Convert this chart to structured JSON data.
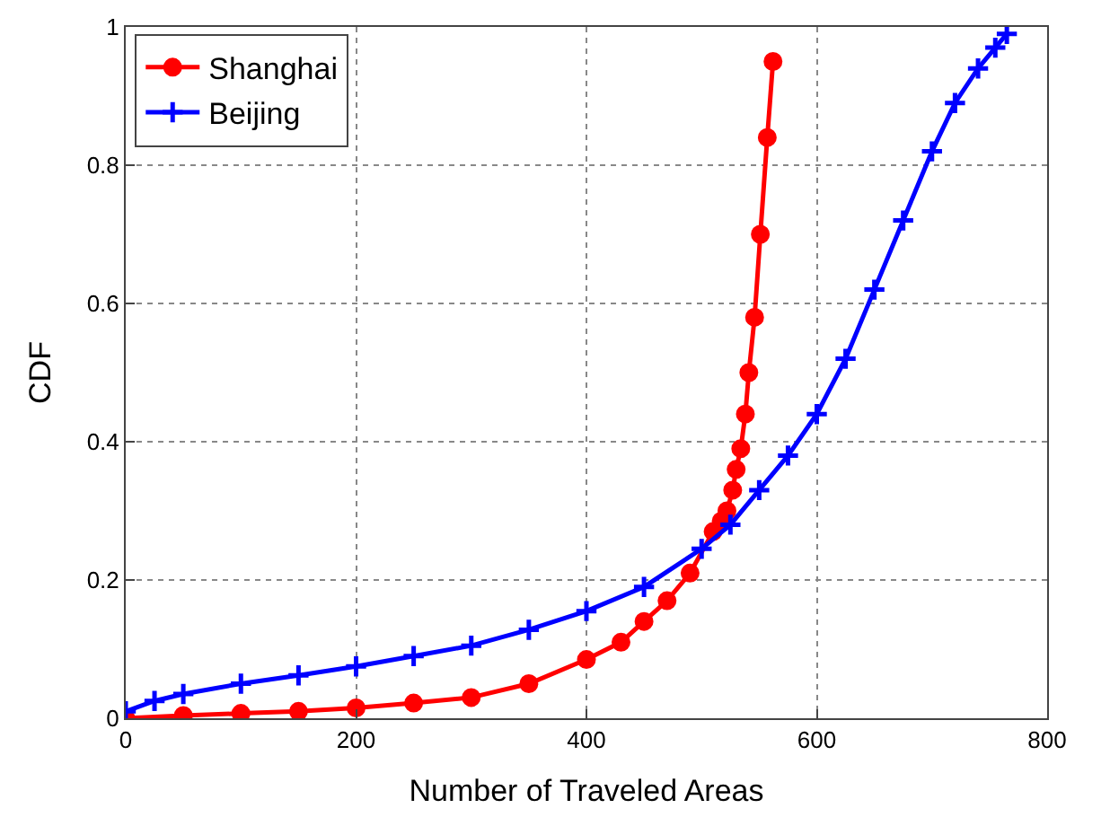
{
  "chart_data": {
    "type": "line",
    "xlabel": "Number of Traveled Areas",
    "ylabel": "CDF",
    "xlim": [
      0,
      800
    ],
    "ylim": [
      0,
      1
    ],
    "xticks": [
      0,
      200,
      400,
      600,
      800
    ],
    "yticks": [
      0,
      0.2,
      0.4,
      0.6,
      0.8,
      1
    ],
    "grid": true,
    "legend": "top left",
    "line_style": "solid",
    "series": [
      {
        "name": "Shanghai",
        "color": "#ff0000",
        "marker": "circle",
        "x": [
          0,
          50,
          100,
          150,
          200,
          250,
          300,
          350,
          400,
          430,
          450,
          470,
          490,
          510,
          517,
          522,
          527,
          530,
          534,
          538,
          541,
          546,
          551,
          557,
          562
        ],
        "values": [
          0,
          0.004,
          0.007,
          0.01,
          0.015,
          0.022,
          0.03,
          0.05,
          0.085,
          0.11,
          0.14,
          0.17,
          0.21,
          0.27,
          0.285,
          0.3,
          0.33,
          0.36,
          0.39,
          0.44,
          0.5,
          0.58,
          0.7,
          0.84,
          0.95
        ]
      },
      {
        "name": "Beijing",
        "color": "#0000ff",
        "marker": "cross",
        "x": [
          0,
          25,
          50,
          100,
          150,
          200,
          250,
          300,
          350,
          400,
          450,
          500,
          525,
          550,
          575,
          600,
          625,
          650,
          675,
          700,
          720,
          740,
          755,
          765
        ],
        "values": [
          0.01,
          0.025,
          0.035,
          0.05,
          0.062,
          0.075,
          0.09,
          0.105,
          0.128,
          0.155,
          0.19,
          0.245,
          0.28,
          0.33,
          0.38,
          0.44,
          0.52,
          0.62,
          0.72,
          0.82,
          0.89,
          0.94,
          0.97,
          0.99
        ]
      }
    ]
  }
}
